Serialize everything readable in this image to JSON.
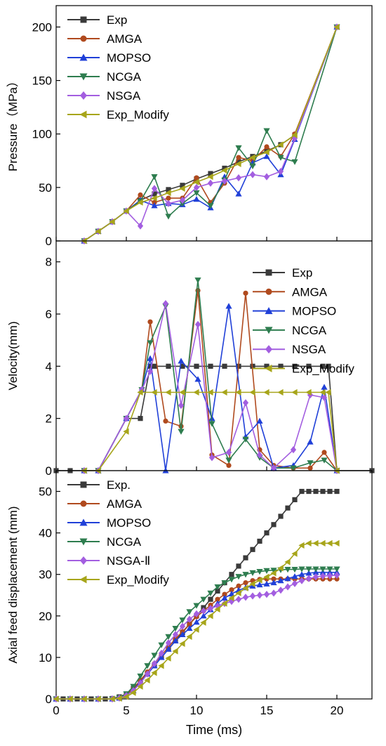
{
  "colors": {
    "Exp": "#3a3a3a",
    "AMGA": "#b04a1e",
    "MOPSO": "#2040d8",
    "NCGA": "#2e7d4f",
    "NSGA": "#a35ee0",
    "Exp_Modify": "#a7a51a"
  },
  "markers": {
    "Exp": "square",
    "AMGA": "circle",
    "MOPSO": "triangle-up",
    "NCGA": "triangle-down",
    "NSGA": "diamond",
    "Exp_Modify": "triangle-left"
  },
  "chart_data": [
    {
      "type": "line",
      "ylabel": "Pressure（MPa）",
      "xlim": [
        0,
        22.5
      ],
      "ylim": [
        0,
        220
      ],
      "yticks": [
        "0",
        "50",
        "100",
        "150",
        "200"
      ],
      "yticks_val": [
        0,
        50,
        100,
        150,
        200
      ],
      "legend": "top-left",
      "series": [
        {
          "name": "Exp",
          "key": "Exp",
          "x": [
            2,
            3,
            4,
            5,
            6,
            7,
            8,
            9,
            10,
            11,
            12,
            13,
            14,
            15,
            16,
            17,
            20
          ],
          "y": [
            0,
            9,
            18,
            28,
            38,
            44,
            48,
            52,
            58,
            63,
            68,
            74,
            79,
            84,
            90,
            99,
            200
          ]
        },
        {
          "name": "AMGA",
          "key": "AMGA",
          "x": [
            2,
            3,
            4,
            5,
            6,
            7,
            8,
            9,
            10,
            11,
            12,
            13,
            14,
            15,
            16,
            17,
            20
          ],
          "y": [
            0,
            9,
            18,
            28,
            43,
            36,
            40,
            40,
            59,
            36,
            54,
            78,
            75,
            88,
            79,
            100,
            200
          ]
        },
        {
          "name": "MOPSO",
          "key": "MOPSO",
          "x": [
            2,
            3,
            4,
            5,
            6,
            7,
            8,
            9,
            10,
            11,
            12,
            13,
            14,
            15,
            16,
            17,
            20
          ],
          "y": [
            0,
            9,
            18,
            28,
            38,
            33,
            35,
            34,
            39,
            31,
            60,
            44,
            73,
            79,
            62,
            95,
            200
          ]
        },
        {
          "name": "NCGA",
          "key": "NCGA",
          "x": [
            2,
            3,
            4,
            5,
            6,
            7,
            8,
            9,
            10,
            11,
            12,
            13,
            14,
            15,
            16,
            17,
            20
          ],
          "y": [
            0,
            9,
            18,
            28,
            37,
            60,
            23,
            35,
            45,
            33,
            57,
            87,
            70,
            103,
            78,
            74,
            200
          ]
        },
        {
          "name": "NSGA",
          "key": "NSGA",
          "x": [
            2,
            3,
            4,
            5,
            6,
            7,
            8,
            9,
            10,
            11,
            12,
            13,
            14,
            15,
            16,
            17,
            20
          ],
          "y": [
            0,
            9,
            18,
            28,
            14,
            49,
            35,
            38,
            50,
            54,
            56,
            59,
            62,
            60,
            65,
            96,
            200
          ]
        },
        {
          "name": "Exp_Modify",
          "key": "Exp_Modify",
          "x": [
            2,
            3,
            4,
            5,
            6,
            7,
            8,
            9,
            10,
            11,
            12,
            13,
            14,
            15,
            16,
            17,
            20
          ],
          "y": [
            0,
            9,
            18,
            28,
            36,
            40,
            45,
            49,
            55,
            60,
            66,
            72,
            78,
            83,
            90,
            99,
            200
          ]
        }
      ]
    },
    {
      "type": "line",
      "ylabel": "Velocity(mm)",
      "xlim": [
        0,
        22.5
      ],
      "ylim": [
        0,
        8.8
      ],
      "yticks": [
        "0",
        "2",
        "4",
        "6",
        "8"
      ],
      "yticks_val": [
        0,
        2,
        4,
        6,
        8
      ],
      "legend": "top-right",
      "series": [
        {
          "name": "Exp",
          "key": "Exp",
          "x": [
            0,
            1,
            2,
            3,
            5,
            6,
            6.7,
            7,
            8,
            9,
            10,
            11,
            12,
            13,
            14,
            15,
            16,
            17,
            18,
            19,
            19.4,
            20,
            22.5
          ],
          "y": [
            0,
            0,
            0,
            0,
            2,
            2,
            4,
            4,
            4,
            4,
            4,
            4,
            4,
            4,
            4,
            4,
            4,
            4,
            4,
            4,
            4,
            0,
            0
          ]
        },
        {
          "name": "AMGA",
          "key": "AMGA",
          "x": [
            2,
            3,
            5,
            6.1,
            6.7,
            7.8,
            8.9,
            10.1,
            11.1,
            12.3,
            13.5,
            14.5,
            15.5,
            16.9,
            18.1,
            19.1,
            20
          ],
          "y": [
            0,
            0,
            2,
            3.1,
            5.7,
            1.9,
            1.7,
            6.9,
            0.6,
            0.2,
            6.8,
            0.8,
            0.2,
            0.1,
            0.1,
            0.7,
            0
          ]
        },
        {
          "name": "MOPSO",
          "key": "MOPSO",
          "x": [
            2,
            3,
            5,
            6.1,
            6.7,
            7.8,
            8.9,
            10.1,
            11.1,
            12.3,
            13.5,
            14.5,
            15.5,
            16.9,
            18.1,
            19.1,
            20
          ],
          "y": [
            0,
            0,
            2,
            3.1,
            4.3,
            0,
            4.2,
            3.5,
            2.0,
            6.3,
            1.3,
            1.9,
            0.1,
            0.2,
            1.1,
            3.2,
            0
          ]
        },
        {
          "name": "NCGA",
          "key": "NCGA",
          "x": [
            2,
            3,
            5,
            6.1,
            6.7,
            7.8,
            8.9,
            10.1,
            11.1,
            12.3,
            13.5,
            14.5,
            15.5,
            16.9,
            18.1,
            19.1,
            20
          ],
          "y": [
            0,
            0,
            2,
            3.1,
            4.9,
            6.3,
            1.5,
            7.3,
            1.8,
            0.4,
            1.2,
            0.5,
            0.1,
            0.1,
            0.3,
            0.4,
            0
          ]
        },
        {
          "name": "NSGA",
          "key": "NSGA",
          "x": [
            2,
            3,
            5,
            6.1,
            6.7,
            7.8,
            8.9,
            10.1,
            11.1,
            12.3,
            13.5,
            14.5,
            15.5,
            16.9,
            18.1,
            19.1,
            20
          ],
          "y": [
            0,
            0,
            2,
            3.1,
            3.8,
            6.4,
            2.5,
            5.6,
            0.5,
            0.7,
            2.6,
            0.6,
            0.1,
            0.8,
            2.9,
            2.8,
            0
          ]
        },
        {
          "name": "Exp_Modify",
          "key": "Exp_Modify",
          "x": [
            2,
            3,
            5,
            6,
            7,
            8,
            9,
            10,
            11,
            12,
            13,
            14,
            15,
            16,
            17,
            18,
            19,
            19.4,
            20
          ],
          "y": [
            0,
            0,
            1.5,
            3,
            3,
            3,
            3,
            3,
            3,
            3,
            3,
            3,
            3,
            3,
            3,
            3,
            3,
            3,
            0
          ]
        }
      ]
    },
    {
      "type": "line",
      "ylabel": "Axial feed displacement (mm)",
      "xlabel": "Time (ms)",
      "xlim": [
        0,
        22.5
      ],
      "ylim": [
        0,
        55
      ],
      "yticks": [
        "0",
        "10",
        "20",
        "30",
        "40",
        "50"
      ],
      "yticks_val": [
        0,
        10,
        20,
        30,
        40,
        50
      ],
      "xticks": [
        "0",
        "5",
        "10",
        "15",
        "20"
      ],
      "xticks_val": [
        0,
        5,
        10,
        15,
        20
      ],
      "legend": "top-left",
      "series": [
        {
          "name": "Exp.",
          "key": "Exp",
          "x": [
            0,
            0.5,
            1,
            1.5,
            2,
            2.5,
            3,
            3.5,
            4,
            4.5,
            5,
            5.5,
            6,
            6.5,
            7,
            7.5,
            8,
            8.5,
            9,
            9.5,
            10,
            10.5,
            11,
            11.5,
            12,
            12.5,
            13,
            13.5,
            14,
            14.5,
            15,
            15.5,
            16,
            16.5,
            17,
            17.5,
            18,
            18.5,
            19,
            19.5,
            20
          ],
          "y": [
            0,
            0,
            0,
            0,
            0,
            0,
            0,
            0,
            0.1,
            0.5,
            1.2,
            2.5,
            4.2,
            6,
            8,
            10,
            12,
            14,
            16,
            18,
            20,
            22,
            24,
            26,
            28,
            30,
            32,
            34,
            36,
            38,
            40,
            42,
            44,
            46,
            48,
            50,
            50,
            50,
            50,
            50,
            50
          ]
        },
        {
          "name": "AMGA",
          "key": "AMGA",
          "x": [
            0,
            1,
            2,
            3,
            4,
            4.5,
            5,
            5.5,
            6,
            6.5,
            7,
            7.5,
            8,
            8.5,
            9,
            9.5,
            10,
            10.5,
            11,
            11.5,
            12,
            12.5,
            13,
            13.5,
            14,
            14.5,
            15,
            15.5,
            16,
            16.5,
            17,
            17.5,
            18,
            18.5,
            19,
            19.5,
            20
          ],
          "y": [
            0,
            0,
            0,
            0,
            0,
            0.3,
            1,
            2.5,
            4.5,
            6.5,
            8.5,
            10.5,
            12.5,
            14.5,
            16.2,
            18,
            19.8,
            21.2,
            22.6,
            24,
            25.2,
            26.3,
            27.2,
            28,
            28.5,
            28.8,
            28.9,
            28.9,
            28.9,
            28.9,
            28.9,
            28.9,
            28.9,
            28.9,
            28.9,
            28.9,
            28.9
          ]
        },
        {
          "name": "MOPSO",
          "key": "MOPSO",
          "x": [
            0,
            1,
            2,
            3,
            4,
            4.5,
            5,
            5.5,
            6,
            6.5,
            7,
            7.5,
            8,
            8.5,
            9,
            9.5,
            10,
            10.5,
            11,
            11.5,
            12,
            12.5,
            13,
            13.5,
            14,
            14.5,
            15,
            15.5,
            16,
            16.5,
            17,
            17.5,
            18,
            18.5,
            19,
            19.5,
            20
          ],
          "y": [
            0,
            0,
            0,
            0,
            0,
            0.2,
            0.8,
            2,
            4,
            6,
            8,
            10,
            12,
            14,
            15.5,
            17,
            18.5,
            20,
            21.5,
            23,
            24.3,
            25.3,
            26.2,
            26.8,
            27.2,
            27.5,
            27.7,
            28,
            28.5,
            29,
            29.5,
            30,
            30.3,
            30.5,
            30.5,
            30.5,
            30.5
          ]
        },
        {
          "name": "NCGA",
          "key": "NCGA",
          "x": [
            0,
            1,
            2,
            3,
            4,
            4.5,
            5,
            5.5,
            6,
            6.5,
            7,
            7.5,
            8,
            8.5,
            9,
            9.5,
            10,
            10.5,
            11,
            11.5,
            12,
            12.5,
            13,
            13.5,
            14,
            14.5,
            15,
            15.5,
            16,
            16.5,
            17,
            17.5,
            18,
            18.5,
            19,
            19.5,
            20
          ],
          "y": [
            0,
            0,
            0,
            0,
            0,
            0.3,
            1.2,
            3,
            5.5,
            8,
            10.5,
            13,
            15,
            17,
            19,
            21,
            22.5,
            24,
            25.5,
            27,
            28,
            28.8,
            29.5,
            30,
            30.4,
            30.7,
            30.9,
            31,
            31.1,
            31.2,
            31.2,
            31.3,
            31.3,
            31.3,
            31.3,
            31.3,
            31.3
          ]
        },
        {
          "name": "NSGA-Ⅱ",
          "key": "NSGA",
          "x": [
            0,
            1,
            2,
            3,
            4,
            4.5,
            5,
            5.5,
            6,
            6.5,
            7,
            7.5,
            8,
            8.5,
            9,
            9.5,
            10,
            10.5,
            11,
            11.5,
            12,
            12.5,
            13,
            13.5,
            14,
            14.5,
            15,
            15.5,
            16,
            16.5,
            17,
            17.5,
            18,
            18.5,
            19,
            19.5,
            20
          ],
          "y": [
            0,
            0,
            0,
            0,
            0,
            0.2,
            0.8,
            2,
            3.8,
            6,
            8.5,
            11,
            13.5,
            15.5,
            17.5,
            19.2,
            20.5,
            21.2,
            21.8,
            22.4,
            23,
            23.5,
            24,
            24.5,
            24.8,
            25,
            25.2,
            25.5,
            26.2,
            27,
            27.8,
            28.5,
            29,
            29.4,
            29.6,
            29.7,
            29.8
          ]
        },
        {
          "name": "Exp_Modify",
          "key": "Exp_Modify",
          "x": [
            0,
            1,
            2,
            3,
            4,
            4.5,
            5,
            5.5,
            6,
            6.5,
            7,
            7.5,
            8,
            8.5,
            9,
            9.5,
            10,
            10.5,
            11,
            11.5,
            12,
            12.5,
            13,
            13.5,
            14,
            14.5,
            15,
            15.5,
            16,
            16.5,
            17,
            17.5,
            18,
            18.5,
            19,
            19.5,
            20
          ],
          "y": [
            0,
            0,
            0,
            0,
            0,
            0.1,
            0.5,
            1.5,
            3,
            4.5,
            6.3,
            8,
            9.8,
            11.5,
            13.3,
            15,
            16.7,
            18.4,
            20,
            21.6,
            23,
            24.3,
            25.5,
            26.7,
            27.7,
            28.6,
            29.4,
            30.3,
            31.5,
            33,
            35,
            37,
            37.5,
            37.5,
            37.5,
            37.5,
            37.5
          ]
        }
      ]
    }
  ]
}
